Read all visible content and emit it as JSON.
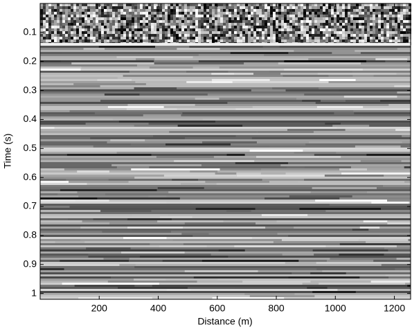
{
  "chart_data": {
    "type": "image",
    "xlabel": "Distance (m)",
    "ylabel": "Time (s)",
    "xlim": [
      0,
      1255
    ],
    "xticks": [
      200,
      400,
      600,
      800,
      1000,
      1200
    ],
    "ylim": [
      0,
      1.02
    ],
    "yticks": [
      0.1,
      0.2,
      0.3,
      0.4,
      0.5,
      0.6,
      0.7,
      0.8,
      0.9,
      1
    ],
    "y_reversed": true,
    "colormap": "gray"
  }
}
